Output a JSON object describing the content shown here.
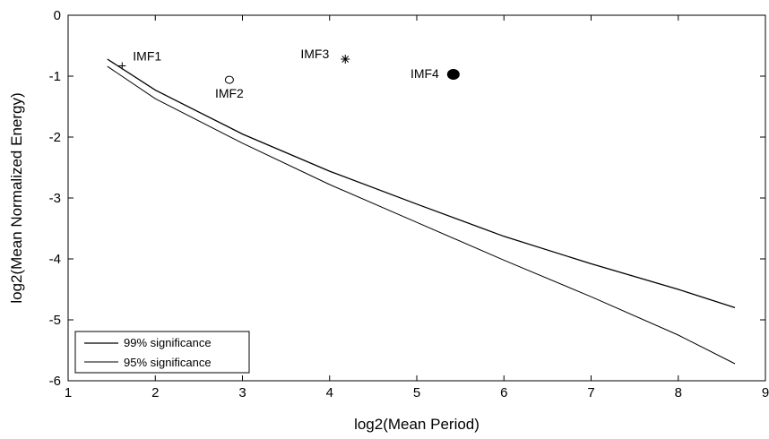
{
  "chart_data": {
    "type": "line",
    "xlabel": "log2(Mean Period)",
    "ylabel": "log2(Mean Normalized Energy)",
    "xlim": [
      1,
      9
    ],
    "ylim": [
      -6,
      0
    ],
    "xticks": [
      "1",
      "2",
      "3",
      "4",
      "5",
      "6",
      "7",
      "8",
      "9"
    ],
    "yticks": [
      "0",
      "-1",
      "-2",
      "-3",
      "-4",
      "-5",
      "-6"
    ],
    "grid": false,
    "legend_position": "bottom-left",
    "series": [
      {
        "name": "99% significance",
        "color": "#000000",
        "x": [
          1.45,
          2,
          3,
          4,
          5,
          6,
          7,
          8,
          8.65
        ],
        "y": [
          -0.72,
          -1.23,
          -1.95,
          -2.56,
          -3.1,
          -3.63,
          -4.08,
          -4.5,
          -4.8
        ]
      },
      {
        "name": "95% significance",
        "color": "#000000",
        "x": [
          1.45,
          2,
          3,
          4,
          5,
          6,
          7,
          8,
          8.65
        ],
        "y": [
          -0.84,
          -1.37,
          -2.1,
          -2.78,
          -3.4,
          -4.02,
          -4.62,
          -5.25,
          -5.72
        ]
      }
    ],
    "points": [
      {
        "label": "IMF1",
        "x": 1.62,
        "y": -0.83,
        "marker": "plus"
      },
      {
        "label": "IMF2",
        "x": 2.85,
        "y": -1.06,
        "marker": "circle-open"
      },
      {
        "label": "IMF3",
        "x": 4.18,
        "y": -0.72,
        "marker": "asterisk"
      },
      {
        "label": "IMF4",
        "x": 5.42,
        "y": -0.97,
        "marker": "circle-filled"
      }
    ]
  }
}
